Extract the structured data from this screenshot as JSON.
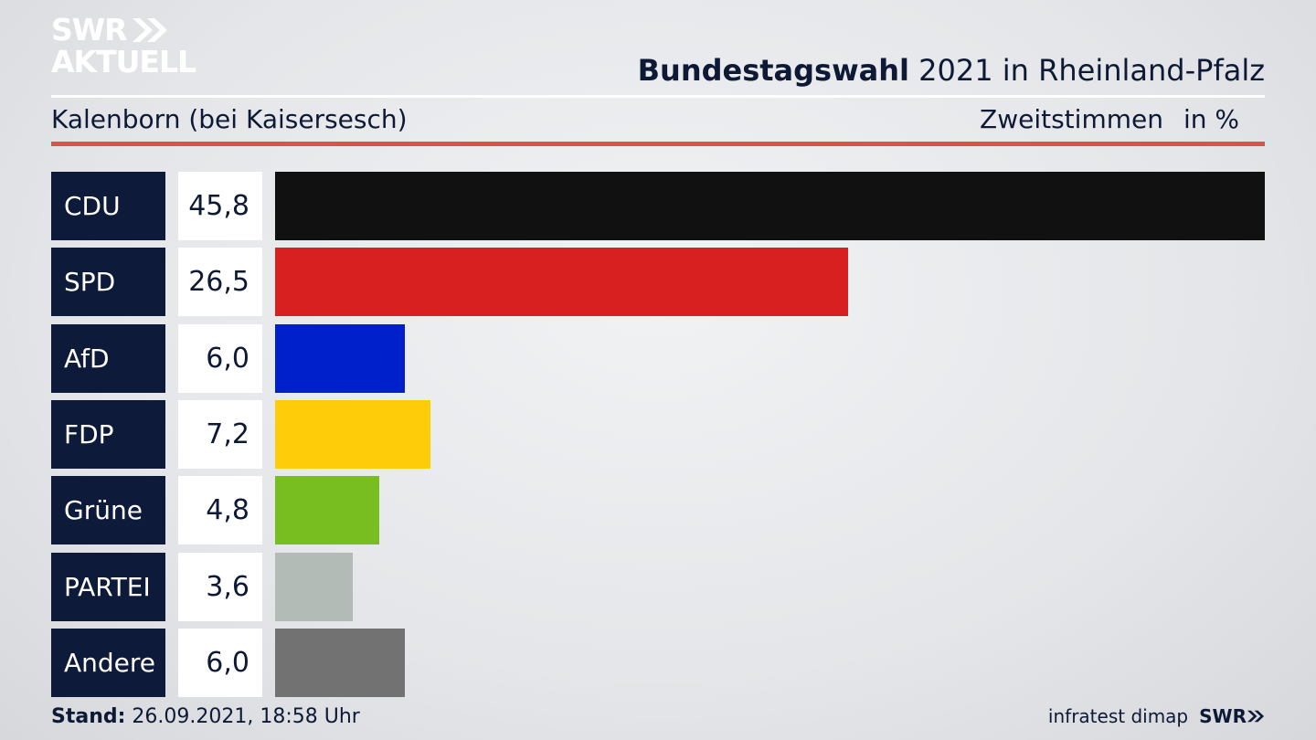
{
  "brand": {
    "logo_line1": "SWR",
    "logo_line2": "AKTUELL",
    "footer_logo": "SWR"
  },
  "header": {
    "title_bold": "Bundestagswahl",
    "title_rest": " 2021 in Rheinland-Pfalz"
  },
  "subheader": {
    "location": "Kalenborn (bei Kaisersesch)",
    "measure": "Zweitstimmen",
    "unit": "in %"
  },
  "footer": {
    "stand_label": "Stand:",
    "stand_value": " 26.09.2021, 18:58 Uhr",
    "source": "infratest dimap"
  },
  "chart_data": {
    "type": "bar",
    "orientation": "horizontal",
    "categories": [
      "CDU",
      "SPD",
      "AfD",
      "FDP",
      "Grüne",
      "PARTEI",
      "Andere"
    ],
    "values": [
      45.8,
      26.5,
      6.0,
      7.2,
      4.8,
      3.6,
      6.0
    ],
    "value_labels": [
      "45,8",
      "26,5",
      "6,0",
      "7,2",
      "4,8",
      "3,6",
      "6,0"
    ],
    "colors": [
      "#111111",
      "#d82020",
      "#0020cc",
      "#ffcc0a",
      "#78be20",
      "#b2bbb5",
      "#727272"
    ],
    "xlim": [
      0,
      45.8
    ],
    "title": "",
    "xlabel": "",
    "ylabel": ""
  }
}
